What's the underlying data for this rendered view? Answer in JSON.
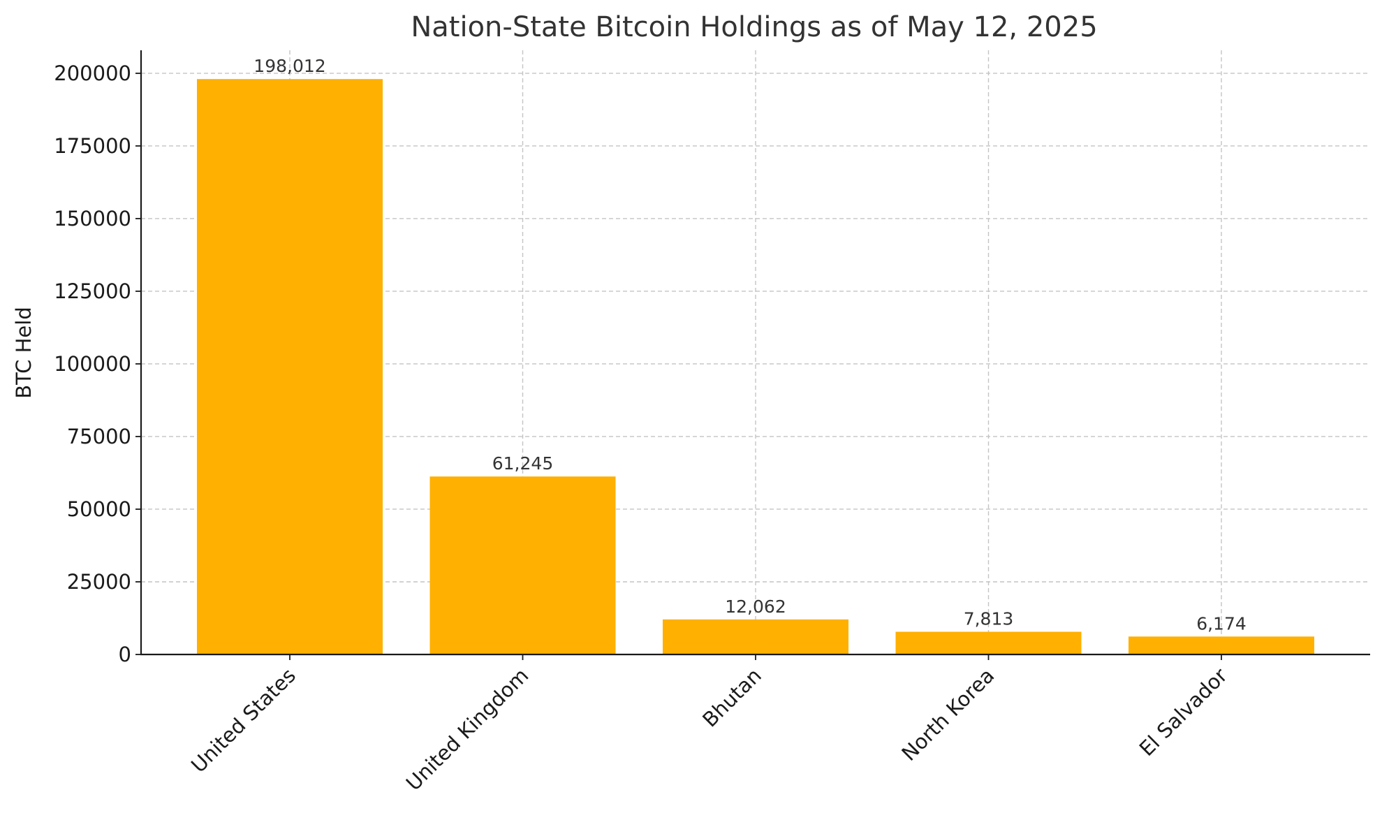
{
  "chart_data": {
    "type": "bar",
    "title": "Nation-State Bitcoin Holdings as of May 12, 2025",
    "xlabel": "",
    "ylabel": "BTC Held",
    "categories": [
      "United States",
      "United Kingdom",
      "Bhutan",
      "North Korea",
      "El Salvador"
    ],
    "values": [
      198012,
      61245,
      12062,
      7813,
      6174
    ],
    "value_labels": [
      "198,012",
      "61,245",
      "12,062",
      "7,813",
      "6,174"
    ],
    "yticks": [
      0,
      25000,
      50000,
      75000,
      100000,
      125000,
      150000,
      175000,
      200000
    ],
    "ytick_labels": [
      "0",
      "25000",
      "50000",
      "75000",
      "100000",
      "125000",
      "150000",
      "175000",
      "200000"
    ],
    "ylim": [
      0,
      207913
    ],
    "grid": true,
    "legend": "none",
    "bar_color": "#FFB000"
  }
}
